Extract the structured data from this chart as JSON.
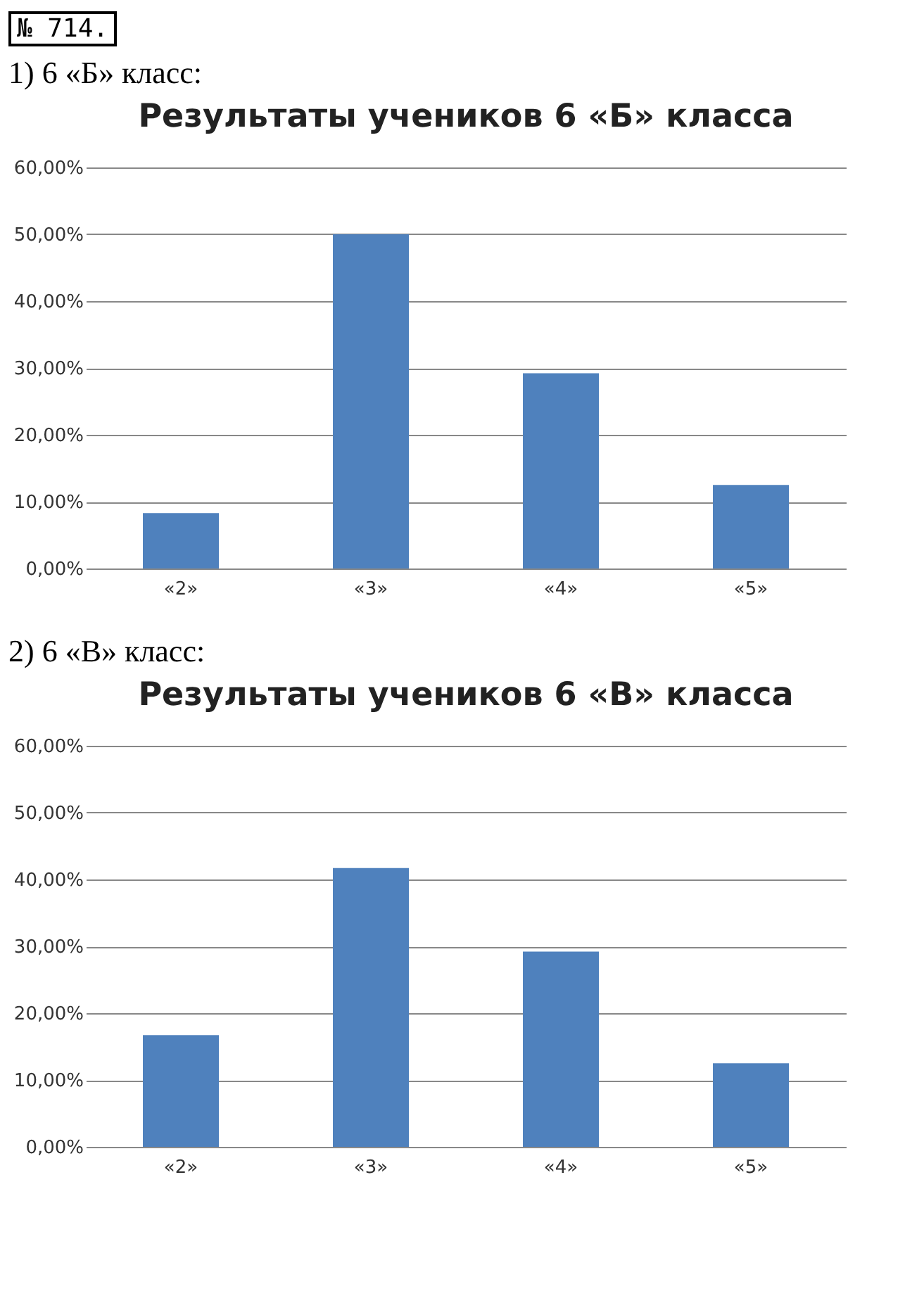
{
  "chart_data": [
    {
      "type": "bar",
      "title": "Результаты учеников 6 «Б» класса",
      "annotations": [
        "№ 714.",
        "1) 6 «Б» класс:"
      ],
      "categories": [
        "«2»",
        "«3»",
        "«4»",
        "«5»"
      ],
      "values": [
        8.3,
        50,
        29.2,
        12.5
      ],
      "color": "#4f81bd",
      "ylim": [
        0,
        60
      ],
      "yticks": [
        {
          "value": 0,
          "label": "0,00%"
        },
        {
          "value": 10,
          "label": "10,00%"
        },
        {
          "value": 20,
          "label": "20,00%"
        },
        {
          "value": 30,
          "label": "30,00%"
        },
        {
          "value": 40,
          "label": "40,00%"
        },
        {
          "value": 50,
          "label": "50,00%"
        },
        {
          "value": 60,
          "label": "60,00%"
        }
      ],
      "grid": "y"
    },
    {
      "type": "bar",
      "title": "Результаты учеников 6 «В» класса",
      "annotations": [
        "2) 6 «В» класс:"
      ],
      "categories": [
        "«2»",
        "«3»",
        "«4»",
        "«5»"
      ],
      "values": [
        16.7,
        41.7,
        29.2,
        12.5
      ],
      "color": "#4f81bd",
      "ylim": [
        0,
        60
      ],
      "yticks": [
        {
          "value": 0,
          "label": "0,00%"
        },
        {
          "value": 10,
          "label": "10,00%"
        },
        {
          "value": 20,
          "label": "20,00%"
        },
        {
          "value": 30,
          "label": "30,00%"
        },
        {
          "value": 40,
          "label": "40,00%"
        },
        {
          "value": 50,
          "label": "50,00%"
        },
        {
          "value": 60,
          "label": "60,00%"
        }
      ],
      "grid": "y"
    }
  ]
}
